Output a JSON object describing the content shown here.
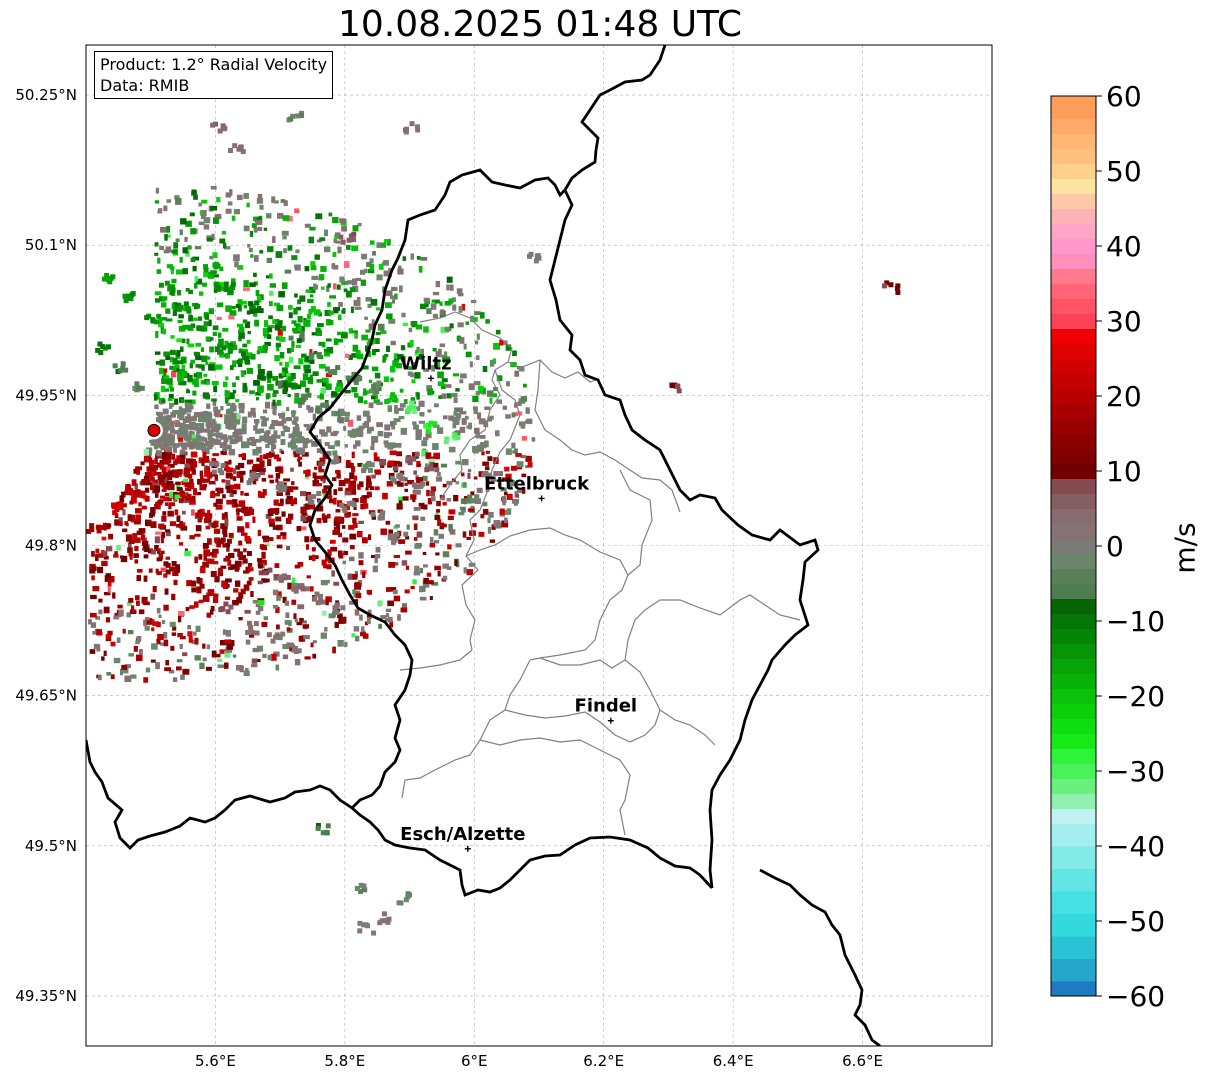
{
  "title": "10.08.2025 01:48 UTC",
  "info_box": {
    "product": "Product: 1.2° Radial Velocity",
    "data": "Data: RMIB"
  },
  "map": {
    "lon_range": [
      5.4,
      6.8
    ],
    "lat_range": [
      49.3,
      50.3
    ],
    "lat_ticks": [
      {
        "value": 50.25,
        "label": "50.25°N"
      },
      {
        "value": 50.1,
        "label": "50.1°N"
      },
      {
        "value": 49.95,
        "label": "49.95°N"
      },
      {
        "value": 49.8,
        "label": "49.8°N"
      },
      {
        "value": 49.65,
        "label": "49.65°N"
      },
      {
        "value": 49.5,
        "label": "49.5°N"
      },
      {
        "value": 49.35,
        "label": "49.35°N"
      }
    ],
    "lon_ticks": [
      {
        "value": 5.6,
        "label": "5.6°E"
      },
      {
        "value": 5.8,
        "label": "5.8°E"
      },
      {
        "value": 6.0,
        "label": "6°E"
      },
      {
        "value": 6.2,
        "label": "6.2°E"
      },
      {
        "value": 6.4,
        "label": "6.4°E"
      },
      {
        "value": 6.6,
        "label": "6.6°E"
      }
    ],
    "grid": true,
    "radar_site": {
      "lon": 5.505,
      "lat": 49.915
    },
    "cities": [
      {
        "name": "Wiltz",
        "lon": 5.933,
        "lat": 49.967
      },
      {
        "name": "Ettelbruck",
        "lon": 6.104,
        "lat": 49.847
      },
      {
        "name": "Findel",
        "lon": 6.211,
        "lat": 49.625
      },
      {
        "name": "Esch/Alzette",
        "lon": 5.99,
        "lat": 49.497
      }
    ]
  },
  "colorbar": {
    "unit": "m/s",
    "min": -60,
    "max": 60,
    "tick_labels": [
      {
        "value": 60,
        "label": "60"
      },
      {
        "value": 50,
        "label": "50"
      },
      {
        "value": 40,
        "label": "40"
      },
      {
        "value": 30,
        "label": "30"
      },
      {
        "value": 20,
        "label": "20"
      },
      {
        "value": 10,
        "label": "10"
      },
      {
        "value": 0,
        "label": "0"
      },
      {
        "value": -10,
        "label": "−10"
      },
      {
        "value": -20,
        "label": "−20"
      },
      {
        "value": -30,
        "label": "−30"
      },
      {
        "value": -40,
        "label": "−40"
      },
      {
        "value": -50,
        "label": "−50"
      },
      {
        "value": -60,
        "label": "−60"
      }
    ],
    "segments": [
      {
        "from": -60,
        "to": -58,
        "color": "#1f7bbf"
      },
      {
        "from": -58,
        "to": -55,
        "color": "#25a6cc"
      },
      {
        "from": -55,
        "to": -52,
        "color": "#29c3d5"
      },
      {
        "from": -52,
        "to": -49,
        "color": "#32dadf"
      },
      {
        "from": -49,
        "to": -46,
        "color": "#47e0e2"
      },
      {
        "from": -46,
        "to": -43,
        "color": "#63e5e6"
      },
      {
        "from": -43,
        "to": -40,
        "color": "#83eaea"
      },
      {
        "from": -40,
        "to": -37,
        "color": "#a3eeee"
      },
      {
        "from": -37,
        "to": -35,
        "color": "#c1f2f2"
      },
      {
        "from": -35,
        "to": -33,
        "color": "#8ff0b0"
      },
      {
        "from": -33,
        "to": -31,
        "color": "#69f07f"
      },
      {
        "from": -31,
        "to": -29,
        "color": "#4bf15a"
      },
      {
        "from": -29,
        "to": -27,
        "color": "#2ff23a"
      },
      {
        "from": -27,
        "to": -25,
        "color": "#16ea16"
      },
      {
        "from": -25,
        "to": -23,
        "color": "#0ede0e"
      },
      {
        "from": -23,
        "to": -21,
        "color": "#0bd10b"
      },
      {
        "from": -21,
        "to": -19,
        "color": "#09c209"
      },
      {
        "from": -19,
        "to": -17,
        "color": "#08b308"
      },
      {
        "from": -17,
        "to": -15,
        "color": "#07a407"
      },
      {
        "from": -15,
        "to": -13,
        "color": "#069506"
      },
      {
        "from": -13,
        "to": -11,
        "color": "#058505"
      },
      {
        "from": -11,
        "to": -9,
        "color": "#057605"
      },
      {
        "from": -9,
        "to": -7,
        "color": "#056505"
      },
      {
        "from": -7,
        "to": -5,
        "color": "#4f7d4f"
      },
      {
        "from": -5,
        "to": -3,
        "color": "#5a805a"
      },
      {
        "from": -3,
        "to": -1,
        "color": "#6c866c"
      },
      {
        "from": -1,
        "to": 1,
        "color": "#7a7a78"
      },
      {
        "from": 1,
        "to": 3,
        "color": "#857373"
      },
      {
        "from": 3,
        "to": 5,
        "color": "#886b70"
      },
      {
        "from": 5,
        "to": 7,
        "color": "#855e63"
      },
      {
        "from": 7,
        "to": 9,
        "color": "#844b50"
      },
      {
        "from": 9,
        "to": 11,
        "color": "#720000"
      },
      {
        "from": 11,
        "to": 13,
        "color": "#7f0000"
      },
      {
        "from": 13,
        "to": 15,
        "color": "#8c0000"
      },
      {
        "from": 15,
        "to": 17,
        "color": "#9a0000"
      },
      {
        "from": 17,
        "to": 19,
        "color": "#a80000"
      },
      {
        "from": 19,
        "to": 21,
        "color": "#b60000"
      },
      {
        "from": 21,
        "to": 23,
        "color": "#c40000"
      },
      {
        "from": 23,
        "to": 25,
        "color": "#d30000"
      },
      {
        "from": 25,
        "to": 27,
        "color": "#e10000"
      },
      {
        "from": 27,
        "to": 29,
        "color": "#f00000"
      },
      {
        "from": 29,
        "to": 31,
        "color": "#ff4356"
      },
      {
        "from": 31,
        "to": 33,
        "color": "#ff5466"
      },
      {
        "from": 33,
        "to": 35,
        "color": "#ff6577"
      },
      {
        "from": 35,
        "to": 37,
        "color": "#ff7a8c"
      },
      {
        "from": 37,
        "to": 39,
        "color": "#ff8fbf"
      },
      {
        "from": 39,
        "to": 41,
        "color": "#ff99cc"
      },
      {
        "from": 41,
        "to": 43,
        "color": "#ffa6c8"
      },
      {
        "from": 43,
        "to": 45,
        "color": "#ffb2b8"
      },
      {
        "from": 45,
        "to": 47,
        "color": "#ffc9a8"
      },
      {
        "from": 47,
        "to": 49,
        "color": "#ffe3a0"
      },
      {
        "from": 49,
        "to": 51,
        "color": "#ffd08c"
      },
      {
        "from": 51,
        "to": 53,
        "color": "#ffc07f"
      },
      {
        "from": 53,
        "to": 55,
        "color": "#ffb774"
      },
      {
        "from": 55,
        "to": 57,
        "color": "#ffaa69"
      },
      {
        "from": 57,
        "to": 60,
        "color": "#ff9d5a"
      }
    ]
  },
  "colors": {
    "border": "#000000",
    "canton_lines": "#808080",
    "grid": "#b0b0b0",
    "radar_marker": "#e00000",
    "approaching": "#008000",
    "receding": "#8b0000",
    "near_zero": "#7a7a78"
  },
  "echo_pixels": [
    [
      5.52,
      50.06,
      -14
    ],
    [
      5.55,
      50.04,
      -13
    ],
    [
      5.58,
      50.02,
      -12
    ],
    [
      5.61,
      50.0,
      -12
    ],
    [
      5.64,
      49.99,
      -11
    ],
    [
      5.67,
      49.97,
      -9
    ],
    [
      5.7,
      49.96,
      -8
    ],
    [
      5.73,
      49.95,
      -5
    ],
    [
      5.76,
      49.94,
      -4
    ],
    [
      5.79,
      49.93,
      -3
    ],
    [
      5.82,
      49.92,
      -1
    ],
    [
      5.5,
      50.03,
      -13
    ],
    [
      5.46,
      50.05,
      -14
    ],
    [
      5.43,
      50.07,
      -15
    ],
    [
      5.42,
      50.0,
      -10
    ],
    [
      5.45,
      49.98,
      -6
    ],
    [
      5.48,
      49.96,
      -4
    ],
    [
      5.59,
      50.08,
      -16
    ],
    [
      5.62,
      50.06,
      -13
    ],
    [
      5.66,
      50.04,
      -10
    ],
    [
      5.69,
      50.02,
      -9
    ],
    [
      5.72,
      50.01,
      -7
    ],
    [
      5.75,
      49.99,
      -6
    ],
    [
      5.78,
      49.98,
      -5
    ],
    [
      5.81,
      49.97,
      -4
    ],
    [
      5.84,
      49.96,
      -3
    ],
    [
      5.87,
      49.95,
      -20
    ],
    [
      5.9,
      49.94,
      -30
    ],
    [
      5.52,
      49.87,
      14
    ],
    [
      5.55,
      49.85,
      18
    ],
    [
      5.58,
      49.83,
      20
    ],
    [
      5.61,
      49.81,
      16
    ],
    [
      5.64,
      49.79,
      12
    ],
    [
      5.67,
      49.78,
      8
    ],
    [
      5.7,
      49.77,
      6
    ],
    [
      5.73,
      49.76,
      4
    ],
    [
      5.76,
      49.75,
      3
    ],
    [
      5.79,
      49.74,
      2
    ],
    [
      5.47,
      49.86,
      20
    ],
    [
      5.44,
      49.84,
      23
    ],
    [
      5.41,
      49.82,
      18
    ],
    [
      5.49,
      49.8,
      10
    ],
    [
      5.53,
      49.78,
      12
    ],
    [
      5.57,
      49.76,
      14
    ],
    [
      5.61,
      49.74,
      7
    ],
    [
      5.65,
      49.72,
      4
    ],
    [
      5.69,
      49.71,
      3
    ],
    [
      5.72,
      49.7,
      2
    ],
    [
      5.55,
      49.9,
      2
    ],
    [
      5.6,
      49.88,
      1
    ],
    [
      5.65,
      49.87,
      0
    ],
    [
      5.7,
      49.86,
      0
    ],
    [
      5.75,
      49.85,
      1
    ],
    [
      5.8,
      49.84,
      1
    ],
    [
      5.85,
      49.83,
      0
    ],
    [
      5.88,
      49.81,
      1
    ],
    [
      5.58,
      49.93,
      -2
    ],
    [
      5.63,
      49.92,
      -1
    ],
    [
      5.68,
      49.91,
      0
    ],
    [
      5.73,
      49.9,
      0
    ],
    [
      5.78,
      49.89,
      0
    ],
    [
      5.83,
      49.88,
      0
    ],
    [
      5.88,
      49.87,
      1
    ],
    [
      5.91,
      49.86,
      2
    ],
    [
      5.93,
      49.92,
      -28
    ],
    [
      5.96,
      49.91,
      -31
    ],
    [
      5.9,
      49.89,
      6
    ],
    [
      5.93,
      49.88,
      8
    ],
    [
      5.63,
      50.2,
      3
    ],
    [
      5.6,
      50.22,
      5
    ],
    [
      5.72,
      50.23,
      -3
    ],
    [
      5.9,
      50.22,
      2
    ],
    [
      5.8,
      50.11,
      6
    ],
    [
      6.09,
      50.09,
      1
    ],
    [
      6.31,
      49.96,
      9
    ],
    [
      6.64,
      50.06,
      10
    ],
    [
      5.82,
      49.46,
      -2
    ],
    [
      5.83,
      49.42,
      1
    ],
    [
      5.86,
      49.43,
      2
    ],
    [
      5.89,
      49.45,
      -3
    ],
    [
      5.76,
      49.52,
      -6
    ],
    [
      5.99,
      49.85,
      -4
    ],
    [
      5.97,
      49.93,
      0
    ],
    [
      6.02,
      49.87,
      3
    ]
  ]
}
